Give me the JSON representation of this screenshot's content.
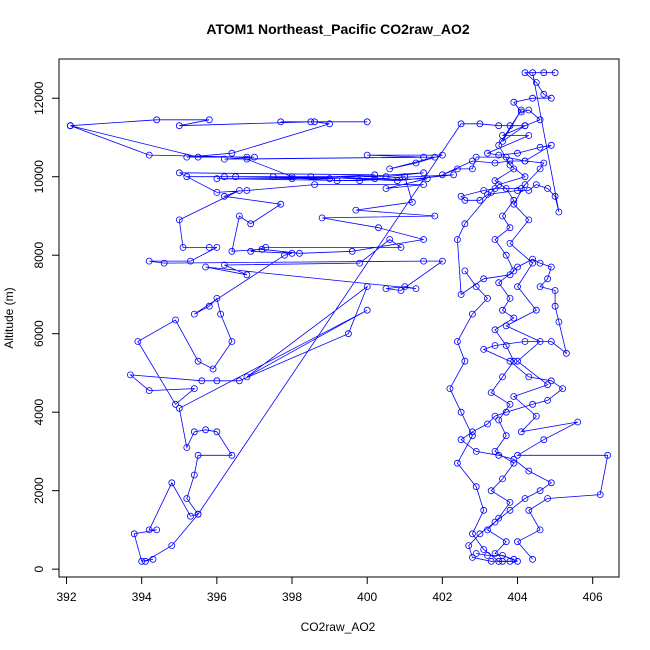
{
  "chart_data": {
    "type": "line",
    "title": "ATOM1 Northeast_Pacific CO2raw_AO2",
    "xlabel": "CO2raw_AO2",
    "ylabel": "Altitude (m)",
    "xlim": [
      391.8,
      406.7
    ],
    "ylim": [
      -200,
      13000
    ],
    "x_ticks": [
      392,
      394,
      396,
      398,
      400,
      402,
      404,
      406
    ],
    "y_ticks": [
      0,
      2000,
      4000,
      6000,
      8000,
      10000,
      12000
    ],
    "grid": false,
    "series": [
      {
        "color": "#0000ff",
        "marker": "open-circle",
        "points": [
          [
            392.1,
            11300
          ],
          [
            394.4,
            11450
          ],
          [
            395.8,
            11450
          ],
          [
            395.0,
            11300
          ],
          [
            398.5,
            11400
          ],
          [
            400.0,
            11400
          ],
          [
            397.7,
            11400
          ],
          [
            398.6,
            11400
          ],
          [
            399.0,
            11350
          ],
          [
            396.4,
            10600
          ],
          [
            395.2,
            10500
          ],
          [
            396.8,
            10500
          ],
          [
            394.2,
            10550
          ],
          [
            392.1,
            11300
          ],
          [
            395.5,
            10500
          ],
          [
            397.0,
            10500
          ],
          [
            396.2,
            10450
          ],
          [
            401.5,
            10500
          ],
          [
            400.0,
            10550
          ],
          [
            402.0,
            10550
          ],
          [
            401.3,
            10350
          ],
          [
            400.6,
            10200
          ],
          [
            401.8,
            10500
          ],
          [
            396.8,
            10450
          ],
          [
            398.0,
            10000
          ],
          [
            400.5,
            10000
          ],
          [
            401.5,
            10100
          ],
          [
            399.0,
            9950
          ],
          [
            396.5,
            10000
          ],
          [
            395.2,
            10000
          ],
          [
            396.2,
            10000
          ],
          [
            398.5,
            10000
          ],
          [
            400.8,
            9900
          ],
          [
            402.3,
            10050
          ],
          [
            400.2,
            9950
          ],
          [
            397.5,
            10000
          ],
          [
            399.2,
            9900
          ],
          [
            401.6,
            9950
          ],
          [
            400.5,
            9700
          ],
          [
            401.5,
            9800
          ],
          [
            398.6,
            9800
          ],
          [
            396.8,
            9650
          ],
          [
            396.0,
            9600
          ],
          [
            395.0,
            10100
          ],
          [
            400.2,
            10050
          ],
          [
            398.0,
            9950
          ],
          [
            396.0,
            9950
          ],
          [
            399.8,
            9900
          ],
          [
            401.0,
            10000
          ],
          [
            401.2,
            9350
          ],
          [
            399.7,
            9150
          ],
          [
            401.8,
            9000
          ],
          [
            398.8,
            8950
          ],
          [
            400.3,
            8700
          ],
          [
            401.5,
            8400
          ],
          [
            399.6,
            8100
          ],
          [
            398.2,
            8050
          ],
          [
            397.2,
            8150
          ],
          [
            396.4,
            8100
          ],
          [
            396.6,
            9000
          ],
          [
            396.9,
            8800
          ],
          [
            397.7,
            9300
          ],
          [
            396.2,
            9500
          ],
          [
            396.6,
            9650
          ],
          [
            395.0,
            8900
          ],
          [
            395.1,
            8200
          ],
          [
            395.8,
            8200
          ],
          [
            396.0,
            8200
          ],
          [
            395.3,
            7850
          ],
          [
            394.2,
            7850
          ],
          [
            394.6,
            7800
          ],
          [
            401.5,
            7850
          ],
          [
            402.0,
            7850
          ],
          [
            400.9,
            7100
          ],
          [
            400.5,
            7150
          ],
          [
            401.0,
            7200
          ],
          [
            401.3,
            7150
          ],
          [
            395.7,
            7700
          ],
          [
            396.8,
            7500
          ],
          [
            396.2,
            7750
          ],
          [
            399.8,
            7800
          ],
          [
            400.6,
            8400
          ],
          [
            400.9,
            8200
          ],
          [
            397.3,
            8200
          ],
          [
            396.9,
            8100
          ],
          [
            398.0,
            8050
          ],
          [
            397.8,
            8000
          ],
          [
            395.4,
            6500
          ],
          [
            395.8,
            6700
          ],
          [
            396.0,
            6900
          ],
          [
            396.1,
            6500
          ],
          [
            396.4,
            5800
          ],
          [
            395.9,
            5100
          ],
          [
            395.5,
            5300
          ],
          [
            394.9,
            6350
          ],
          [
            393.9,
            5800
          ],
          [
            394.9,
            4200
          ],
          [
            395.4,
            4600
          ],
          [
            394.2,
            4550
          ],
          [
            393.7,
            4950
          ],
          [
            395.6,
            4800
          ],
          [
            396.0,
            4800
          ],
          [
            396.6,
            4800
          ],
          [
            399.5,
            6000
          ],
          [
            400.0,
            7200
          ],
          [
            396.8,
            4900
          ],
          [
            400.0,
            6600
          ],
          [
            395.0,
            4100
          ],
          [
            395.2,
            3100
          ],
          [
            395.4,
            3500
          ],
          [
            395.7,
            3550
          ],
          [
            396.0,
            3500
          ],
          [
            396.4,
            2900
          ],
          [
            395.5,
            2900
          ],
          [
            395.4,
            2400
          ],
          [
            395.2,
            1800
          ],
          [
            395.5,
            1400
          ],
          [
            395.3,
            1350
          ],
          [
            394.8,
            2200
          ],
          [
            394.2,
            1000
          ],
          [
            394.4,
            1000
          ],
          [
            393.8,
            900
          ],
          [
            394.0,
            200
          ],
          [
            394.3,
            250
          ],
          [
            394.1,
            200
          ],
          [
            394.8,
            600
          ],
          [
            395.5,
            1400
          ],
          [
            402.5,
            11350
          ],
          [
            403.0,
            11350
          ],
          [
            403.5,
            11300
          ],
          [
            403.8,
            11300
          ],
          [
            404.2,
            11300
          ],
          [
            403.6,
            11050
          ],
          [
            404.3,
            11050
          ],
          [
            403.2,
            10600
          ],
          [
            403.5,
            10550
          ],
          [
            404.0,
            10600
          ],
          [
            404.6,
            10750
          ],
          [
            404.9,
            10800
          ],
          [
            404.2,
            10400
          ],
          [
            403.8,
            10400
          ],
          [
            403.4,
            10350
          ],
          [
            402.8,
            10400
          ],
          [
            402.0,
            10050
          ],
          [
            402.4,
            10200
          ],
          [
            402.8,
            10200
          ],
          [
            402.9,
            10500
          ],
          [
            403.7,
            10500
          ],
          [
            404.2,
            10400
          ],
          [
            404.7,
            10350
          ],
          [
            404.6,
            10200
          ],
          [
            404.1,
            9700
          ],
          [
            403.4,
            9700
          ],
          [
            403.1,
            9650
          ],
          [
            402.5,
            9500
          ],
          [
            402.6,
            9400
          ],
          [
            403.0,
            9400
          ],
          [
            403.2,
            9550
          ],
          [
            404.0,
            9650
          ],
          [
            404.3,
            9650
          ],
          [
            404.5,
            9800
          ],
          [
            404.8,
            9700
          ],
          [
            405.0,
            9500
          ],
          [
            405.1,
            9100
          ],
          [
            404.4,
            12650
          ],
          [
            404.7,
            12650
          ],
          [
            405.0,
            12650
          ],
          [
            404.2,
            12650
          ],
          [
            404.5,
            12400
          ],
          [
            404.7,
            12100
          ],
          [
            404.9,
            12000
          ],
          [
            404.4,
            12000
          ],
          [
            403.9,
            11900
          ],
          [
            404.1,
            11650
          ],
          [
            404.3,
            11700
          ],
          [
            404.6,
            11450
          ],
          [
            404.2,
            11300
          ],
          [
            403.6,
            10900
          ],
          [
            404.1,
            11700
          ],
          [
            403.5,
            10800
          ],
          [
            403.8,
            10300
          ],
          [
            404.2,
            10000
          ],
          [
            403.5,
            9800
          ],
          [
            403.3,
            9600
          ],
          [
            402.6,
            8800
          ],
          [
            402.4,
            8400
          ],
          [
            402.5,
            7000
          ],
          [
            403.1,
            7400
          ],
          [
            403.8,
            7500
          ],
          [
            404.0,
            7700
          ],
          [
            404.4,
            7900
          ],
          [
            404.6,
            7800
          ],
          [
            404.9,
            7700
          ],
          [
            404.8,
            7400
          ],
          [
            404.6,
            7200
          ],
          [
            405.0,
            7100
          ],
          [
            405.0,
            6700
          ],
          [
            405.1,
            6300
          ],
          [
            405.3,
            5500
          ],
          [
            404.9,
            5800
          ],
          [
            404.2,
            5800
          ],
          [
            403.4,
            5700
          ],
          [
            403.1,
            5600
          ],
          [
            403.8,
            5300
          ],
          [
            404.3,
            4900
          ],
          [
            404.9,
            4800
          ],
          [
            405.2,
            4600
          ],
          [
            404.8,
            4300
          ],
          [
            404.4,
            4200
          ],
          [
            403.7,
            4000
          ],
          [
            403.4,
            3900
          ],
          [
            403.2,
            3700
          ],
          [
            402.8,
            3500
          ],
          [
            402.5,
            3300
          ],
          [
            402.9,
            3000
          ],
          [
            403.5,
            2900
          ],
          [
            403.9,
            2800
          ],
          [
            404.3,
            2500
          ],
          [
            404.9,
            2200
          ],
          [
            404.6,
            2000
          ],
          [
            404.2,
            1800
          ],
          [
            403.8,
            1500
          ],
          [
            403.4,
            1200
          ],
          [
            403.0,
            900
          ],
          [
            402.7,
            600
          ],
          [
            402.8,
            300
          ],
          [
            403.3,
            200
          ],
          [
            403.6,
            200
          ],
          [
            404.0,
            200
          ],
          [
            403.6,
            350
          ],
          [
            403.2,
            350
          ],
          [
            402.9,
            400
          ]
        ]
      },
      {
        "color": "#0000ff",
        "marker": "open-circle",
        "points": [
          [
            403.9,
            10200
          ],
          [
            403.4,
            9900
          ],
          [
            403.7,
            9700
          ],
          [
            403.9,
            9400
          ],
          [
            403.6,
            9000
          ],
          [
            403.8,
            8700
          ],
          [
            403.4,
            8400
          ],
          [
            403.7,
            8000
          ],
          [
            403.9,
            7600
          ],
          [
            403.5,
            7300
          ],
          [
            403.8,
            6900
          ],
          [
            403.6,
            6600
          ],
          [
            403.9,
            6400
          ],
          [
            403.4,
            6100
          ],
          [
            403.7,
            5700
          ],
          [
            403.9,
            5300
          ],
          [
            403.6,
            4900
          ],
          [
            403.3,
            4500
          ],
          [
            403.8,
            4200
          ],
          [
            403.5,
            3800
          ],
          [
            403.7,
            3400
          ],
          [
            403.4,
            3000
          ],
          [
            403.9,
            2700
          ],
          [
            403.6,
            2300
          ],
          [
            403.3,
            2000
          ],
          [
            403.8,
            1700
          ],
          [
            403.5,
            1300
          ],
          [
            403.2,
            1000
          ],
          [
            403.7,
            700
          ],
          [
            403.4,
            400
          ],
          [
            403.9,
            250
          ]
        ]
      },
      {
        "color": "#0000ff",
        "marker": "open-circle",
        "points": [
          [
            404.2,
            9800
          ],
          [
            403.9,
            9300
          ],
          [
            404.3,
            8900
          ],
          [
            403.8,
            8300
          ],
          [
            404.4,
            7800
          ],
          [
            404.0,
            7200
          ],
          [
            404.5,
            6600
          ],
          [
            403.7,
            6200
          ],
          [
            404.6,
            5800
          ],
          [
            404.0,
            5300
          ],
          [
            404.8,
            4700
          ],
          [
            403.9,
            4400
          ],
          [
            404.5,
            3900
          ],
          [
            404.1,
            3500
          ],
          [
            405.6,
            3750
          ],
          [
            404.7,
            3300
          ],
          [
            404.0,
            2900
          ],
          [
            406.4,
            2900
          ],
          [
            406.2,
            1900
          ],
          [
            404.8,
            1800
          ],
          [
            404.3,
            1500
          ],
          [
            404.6,
            1000
          ],
          [
            404.0,
            700
          ],
          [
            404.4,
            250
          ]
        ]
      },
      {
        "color": "#0000ff",
        "marker": "open-circle",
        "points": [
          [
            402.6,
            7600
          ],
          [
            402.9,
            7200
          ],
          [
            403.2,
            6900
          ],
          [
            402.8,
            6500
          ],
          [
            402.4,
            5800
          ],
          [
            402.6,
            5300
          ],
          [
            402.2,
            4600
          ],
          [
            402.5,
            4000
          ],
          [
            402.8,
            3400
          ],
          [
            402.4,
            2700
          ],
          [
            402.9,
            2100
          ],
          [
            403.1,
            1500
          ],
          [
            402.8,
            900
          ],
          [
            403.1,
            500
          ],
          [
            403.5,
            200
          ],
          [
            403.8,
            200
          ]
        ]
      }
    ]
  }
}
